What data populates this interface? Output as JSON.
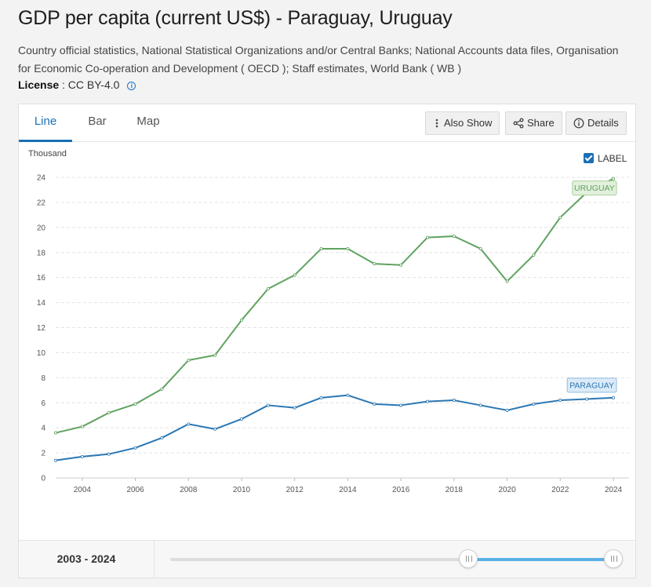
{
  "title": "GDP per capita (current US$) - Paraguay, Uruguay",
  "source": "Country official statistics, National Statistical Organizations and/or Central Banks; National Accounts data files, Organisation for Economic Co-operation and Development ( OECD ); Staff estimates, World Bank ( WB )",
  "license": {
    "label": "License",
    "value": ": CC BY-4.0",
    "icon": "info-icon"
  },
  "tabs": [
    {
      "label": "Line",
      "active": true
    },
    {
      "label": "Bar",
      "active": false
    },
    {
      "label": "Map",
      "active": false
    }
  ],
  "toolbar": {
    "also_show": {
      "label": "Also Show",
      "icon": "vertical-dots-icon"
    },
    "share": {
      "label": "Share",
      "icon": "share-icon"
    },
    "details": {
      "label": "Details",
      "icon": "info-icon"
    }
  },
  "label_toggle": {
    "label": "LABEL",
    "checked": true
  },
  "range": {
    "text": "2003 - 2024",
    "min_year": 1960,
    "max_year": 2024,
    "start_year": 2003,
    "end_year": 2024
  },
  "colors": {
    "uruguay": "#5fa25f",
    "paraguay": "#2a77b4",
    "accent": "#1a6fb5"
  },
  "chart_data": {
    "type": "line",
    "ylabel": "Thousand",
    "ylim": [
      0,
      24
    ],
    "yticks": [
      0,
      2,
      4,
      6,
      8,
      10,
      12,
      14,
      16,
      18,
      20,
      22,
      24
    ],
    "xlim": [
      2003,
      2024
    ],
    "xticks": [
      2004,
      2006,
      2008,
      2010,
      2012,
      2014,
      2016,
      2018,
      2020,
      2022,
      2024
    ],
    "grid": true,
    "x": [
      2003,
      2004,
      2005,
      2006,
      2007,
      2008,
      2009,
      2010,
      2011,
      2012,
      2013,
      2014,
      2015,
      2016,
      2017,
      2018,
      2019,
      2020,
      2021,
      2022,
      2023,
      2024
    ],
    "series": [
      {
        "name": "URUGUAY",
        "color": "#5fa25f",
        "values": [
          3.6,
          4.1,
          5.2,
          5.9,
          7.1,
          9.4,
          9.8,
          12.6,
          15.1,
          16.2,
          18.3,
          18.3,
          17.1,
          17.0,
          19.2,
          19.3,
          18.3,
          15.7,
          17.8,
          20.8,
          22.8,
          23.9
        ]
      },
      {
        "name": "PARAGUAY",
        "color": "#2a77b4",
        "values": [
          1.4,
          1.7,
          1.9,
          2.4,
          3.2,
          4.3,
          3.9,
          4.7,
          5.8,
          5.6,
          6.4,
          6.6,
          5.9,
          5.8,
          6.1,
          6.2,
          5.8,
          5.4,
          5.9,
          6.2,
          6.3,
          6.4
        ]
      }
    ]
  }
}
